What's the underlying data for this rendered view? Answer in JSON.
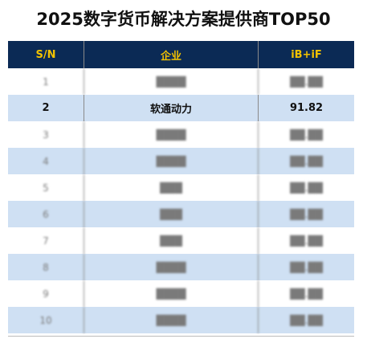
{
  "chart_data": {
    "type": "table",
    "title": "2025数字货币解决方案提供商TOP50",
    "columns": [
      "S/N",
      "企业",
      "iB+iF"
    ],
    "rows": [
      {
        "sn": "1",
        "company": "████",
        "score": "██.██",
        "legible": false
      },
      {
        "sn": "2",
        "company": "软通动力",
        "score": "91.82",
        "legible": true
      },
      {
        "sn": "3",
        "company": "████",
        "score": "██.██",
        "legible": false
      },
      {
        "sn": "4",
        "company": "████",
        "score": "██.██",
        "legible": false
      },
      {
        "sn": "5",
        "company": "███",
        "score": "██.██",
        "legible": false
      },
      {
        "sn": "6",
        "company": "███",
        "score": "██.██",
        "legible": false
      },
      {
        "sn": "7",
        "company": "███",
        "score": "██.██",
        "legible": false
      },
      {
        "sn": "8",
        "company": "████",
        "score": "██.██",
        "legible": false
      },
      {
        "sn": "9",
        "company": "████",
        "score": "██.██",
        "legible": false
      },
      {
        "sn": "10",
        "company": "████",
        "score": "██.██",
        "legible": false
      }
    ],
    "colors": {
      "header_bg": "#0b2a55",
      "header_text": "#f2c200",
      "row_alt": "#cfe0f3",
      "row_plain": "#ffffff"
    }
  }
}
